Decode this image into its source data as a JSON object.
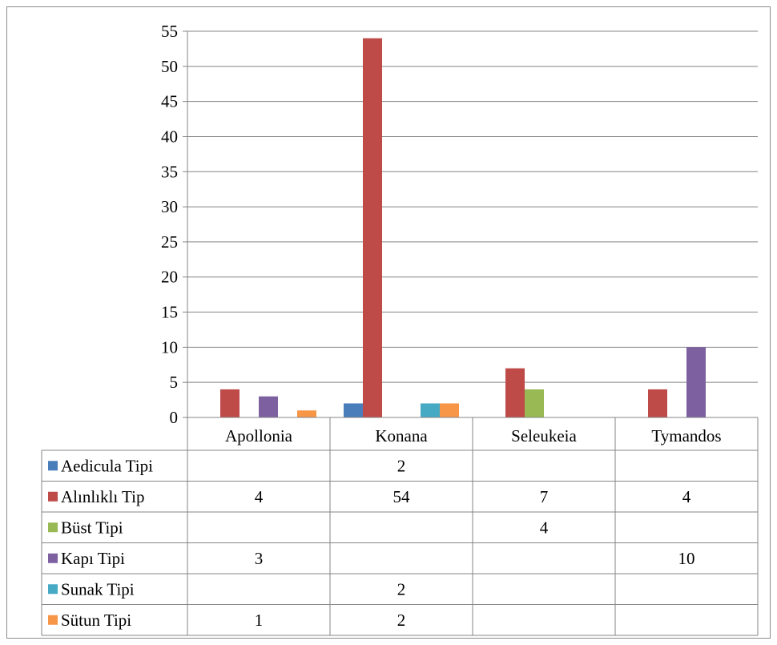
{
  "chart_data": {
    "type": "bar",
    "categories": [
      "Apollonia",
      "Konana",
      "Seleukeia",
      "Tymandos"
    ],
    "series": [
      {
        "name": "Aedicula Tipi",
        "color": "#4a7ebb",
        "values": [
          null,
          2,
          null,
          null
        ]
      },
      {
        "name": "Alınlıklı Tip",
        "color": "#be4b48",
        "values": [
          4,
          54,
          7,
          4
        ]
      },
      {
        "name": "Büst Tipi",
        "color": "#98b954",
        "values": [
          null,
          null,
          4,
          null
        ]
      },
      {
        "name": "Kapı Tipi",
        "color": "#7d60a0",
        "values": [
          3,
          null,
          null,
          10
        ]
      },
      {
        "name": "Sunak Tipi",
        "color": "#46aac5",
        "values": [
          null,
          2,
          null,
          null
        ]
      },
      {
        "name": "Sütun Tipi",
        "color": "#f79646",
        "values": [
          1,
          2,
          null,
          null
        ]
      }
    ],
    "yticks": [
      "0",
      "5",
      "10",
      "15",
      "20",
      "25",
      "30",
      "35",
      "40",
      "45",
      "50",
      "55"
    ],
    "ylim": [
      0,
      55
    ],
    "grid": true,
    "legend": "data-table",
    "title": "",
    "xlabel": "",
    "ylabel": ""
  }
}
